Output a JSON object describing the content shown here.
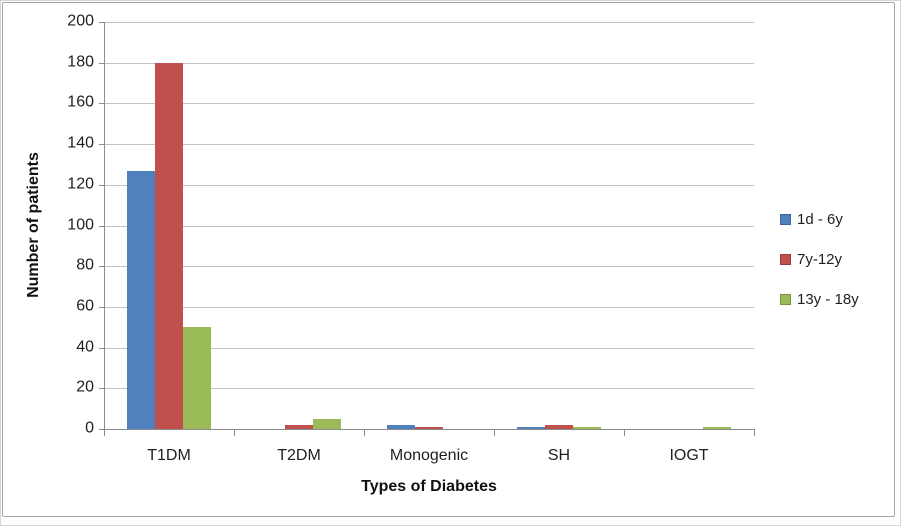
{
  "chart_data": {
    "type": "bar",
    "title": "",
    "xlabel": "Types of Diabetes",
    "ylabel": "Number of patients",
    "categories": [
      "T1DM",
      "T2DM",
      "Monogenic",
      "SH",
      "IOGT"
    ],
    "series": [
      {
        "name": "1d - 6y",
        "color": "#4F81BD",
        "values": [
          127,
          0,
          2,
          1,
          0
        ]
      },
      {
        "name": "7y-12y",
        "color": "#C0504D",
        "values": [
          180,
          2,
          1,
          2,
          0
        ]
      },
      {
        "name": "13y - 18y",
        "color": "#9BBB59",
        "values": [
          50,
          5,
          0,
          1,
          1
        ]
      }
    ],
    "ylim": [
      0,
      200
    ],
    "ytick_step": 20,
    "yticks": [
      0,
      20,
      40,
      60,
      80,
      100,
      120,
      140,
      160,
      180,
      200
    ],
    "grid": true,
    "legend_position": "right"
  },
  "colors": {
    "gridline": "#C3C3C3",
    "axis": "#8C8C8C",
    "text": "#1F1F1F",
    "frame_border": "#A6A6A6"
  }
}
